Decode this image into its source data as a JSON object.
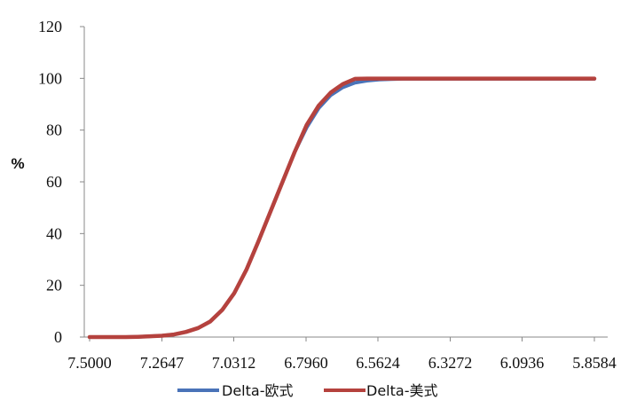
{
  "chart_data": {
    "type": "line",
    "ylabel": "%",
    "ylim": [
      0,
      120
    ],
    "yticks": [
      "0",
      "20",
      "40",
      "60",
      "80",
      "100",
      "120"
    ],
    "xlim": [
      7.5,
      5.8584
    ],
    "xticks": [
      "7.5000",
      "7.2647",
      "7.0312",
      "6.7960",
      "6.5624",
      "6.3272",
      "6.0936",
      "5.8584"
    ],
    "x_order": "decreasing",
    "grid": false,
    "legend_position": "bottom",
    "x": [
      7.5,
      7.4608,
      7.4216,
      7.3824,
      7.3431,
      7.3039,
      7.2647,
      7.2255,
      7.1863,
      7.147,
      7.1078,
      7.0686,
      7.0294,
      6.9902,
      6.951,
      6.9118,
      6.8725,
      6.8333,
      6.7941,
      6.7549,
      6.7157,
      6.6765,
      6.6372,
      6.598,
      6.5588,
      6.5196,
      6.4804,
      6.4412,
      6.402,
      6.3627,
      6.3235,
      6.2843,
      6.2451,
      6.2059,
      6.1667,
      6.1275,
      6.0882,
      6.049,
      6.0098,
      5.9706,
      5.9314,
      5.8922,
      5.8584
    ],
    "series": [
      {
        "name": "Delta-欧式",
        "color": "#4a73b8",
        "values": [
          0,
          0,
          0,
          0,
          0.1,
          0.3,
          0.5,
          1,
          2,
          3.5,
          6,
          10.5,
          17,
          26,
          37,
          48.5,
          60,
          71.5,
          81,
          88.5,
          93.5,
          96.5,
          98.3,
          99.1,
          99.5,
          99.7,
          99.8,
          99.8,
          99.8,
          99.8,
          99.8,
          99.8,
          99.8,
          99.8,
          99.8,
          99.8,
          99.8,
          99.8,
          99.8,
          99.8,
          99.8,
          99.8,
          99.8
        ]
      },
      {
        "name": "Delta-美式",
        "color": "#b5423e",
        "values": [
          0,
          0,
          0,
          0,
          0.1,
          0.3,
          0.5,
          1,
          2,
          3.5,
          6,
          10.5,
          17,
          26,
          37,
          48.5,
          60,
          71.5,
          82,
          89.5,
          94.5,
          97.8,
          99.8,
          99.9,
          99.9,
          99.9,
          99.9,
          99.9,
          99.9,
          99.9,
          99.9,
          99.9,
          99.9,
          99.9,
          99.9,
          99.9,
          99.9,
          99.9,
          99.9,
          99.9,
          99.9,
          99.9,
          99.9
        ]
      }
    ]
  }
}
